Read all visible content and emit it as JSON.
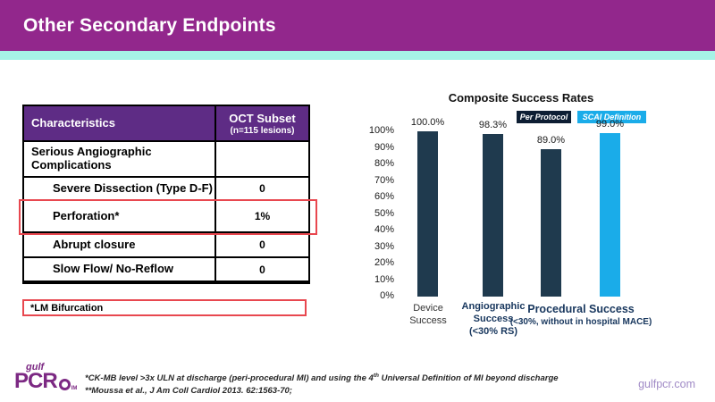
{
  "slide": {
    "title": "Other Secondary Endpoints",
    "website": "gulfpcr.com",
    "logo": {
      "top": "gulf",
      "main": "PCR",
      "sub": "IM"
    },
    "accent_colors": {
      "banner_purple": "#92278C",
      "teal_strip": "#A6F2E6",
      "table_header_purple": "#5E2C85",
      "highlight_red": "#E8474F"
    }
  },
  "table": {
    "header": {
      "col1": "Characteristics",
      "col2_line1": "OCT Subset",
      "col2_line2": "(n=115 lesions)"
    },
    "rows": [
      {
        "label": "Serious Angiographic Complications",
        "value": "",
        "indent": false,
        "highlight": false
      },
      {
        "label": "Severe Dissection (Type D-F)",
        "value": "0",
        "indent": true,
        "highlight": false
      },
      {
        "label": "Perforation*",
        "value": "1%",
        "indent": true,
        "highlight": true
      },
      {
        "label": "Abrupt closure",
        "value": "0",
        "indent": true,
        "highlight": false
      },
      {
        "label": "Slow Flow/ No-Reflow",
        "value": "0",
        "indent": true,
        "highlight": false
      }
    ]
  },
  "note_box": {
    "text": "*LM Bifurcation"
  },
  "chart_data": {
    "type": "bar",
    "title": "Composite Success Rates",
    "ylim": [
      0,
      100
    ],
    "ytick_step": 10,
    "ytick_suffix": "%",
    "grid": false,
    "legend_position": "top-right",
    "legend": [
      {
        "label": "Per Protocol",
        "color": "#0D1E33"
      },
      {
        "label": "SCAI Definition",
        "color": "#1AACE9"
      }
    ],
    "bars": [
      {
        "category": "Device Success",
        "series": "Per Protocol",
        "value": 100.0,
        "label": "100.0%",
        "color": "#1F3A4E"
      },
      {
        "category": "Angiographic Success (<30% RS)",
        "series": "Per Protocol",
        "value": 98.3,
        "label": "98.3%",
        "color": "#1F3A4E"
      },
      {
        "category": "Procedural Success (<30%, without in hospital MACE)",
        "series": "Per Protocol",
        "value": 89.0,
        "label": "89.0%",
        "color": "#1F3A4E"
      },
      {
        "category": "Procedural Success (<30%, without in hospital MACE)",
        "series": "SCAI Definition",
        "value": 99.0,
        "label": "99.0%",
        "color": "#1AACE9"
      }
    ],
    "x_groups": [
      {
        "lines": [
          "Device",
          "Success"
        ],
        "color": "#333333"
      },
      {
        "lines": [
          "Angiographic",
          "Success",
          "(<30% RS)"
        ],
        "color": "#17365D"
      },
      {
        "lines": [
          "Procedural Success",
          "(<30%, without in hospital MACE)"
        ],
        "color": "#17365D"
      }
    ]
  },
  "footnotes": {
    "line1_pre": "*CK-MB level >3x ULN at discharge (peri-procedural MI) and using the 4",
    "line1_sup": "th",
    "line1_post": " Universal Definition of MI beyond  discharge",
    "line2": "**Moussa et al., J Am Coll Cardiol 2013. 62:1563-70;"
  }
}
